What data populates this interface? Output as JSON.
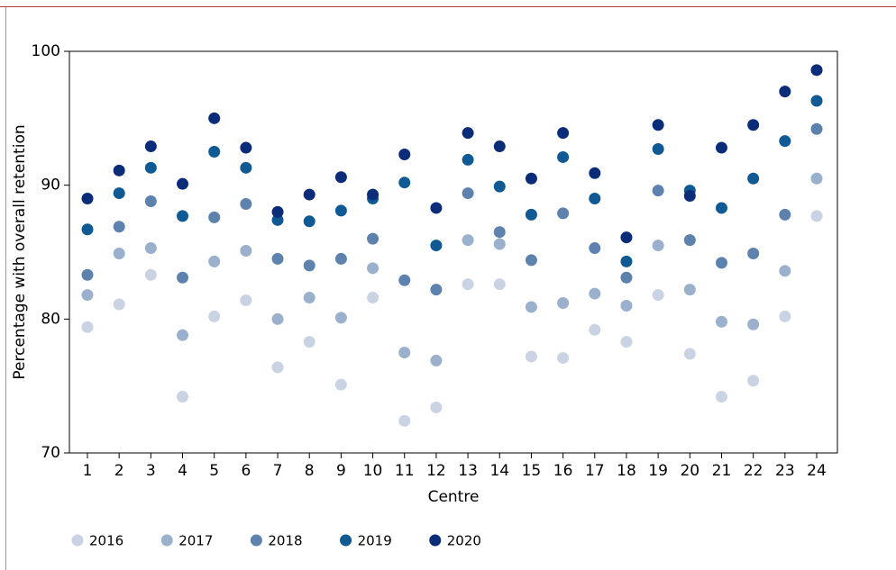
{
  "chart_data": {
    "type": "scatter",
    "x_label": "Centre",
    "y_label": "Percentage with overall retention",
    "categories": [
      "1",
      "2",
      "3",
      "4",
      "5",
      "6",
      "7",
      "8",
      "9",
      "10",
      "11",
      "12",
      "13",
      "14",
      "15",
      "16",
      "17",
      "18",
      "19",
      "20",
      "21",
      "22",
      "23",
      "24"
    ],
    "ylim": [
      70,
      100
    ],
    "yticks": [
      70,
      80,
      90,
      100
    ],
    "legend": "bottom-left",
    "series": [
      {
        "name": "2016",
        "color": "#c9d3e3",
        "values": [
          79.4,
          81.1,
          83.3,
          74.2,
          80.2,
          81.4,
          76.4,
          78.3,
          75.1,
          81.6,
          72.4,
          73.4,
          82.6,
          82.6,
          77.2,
          77.1,
          79.2,
          78.3,
          81.8,
          77.4,
          74.2,
          75.4,
          80.2,
          87.7
        ]
      },
      {
        "name": "2017",
        "color": "#9ab0cc",
        "values": [
          81.8,
          84.9,
          85.3,
          78.8,
          84.3,
          85.1,
          80.0,
          81.6,
          80.1,
          83.8,
          77.5,
          76.9,
          85.9,
          85.6,
          80.9,
          81.2,
          81.9,
          81.0,
          85.5,
          82.2,
          79.8,
          79.6,
          83.6,
          90.5
        ]
      },
      {
        "name": "2018",
        "color": "#5e82ae",
        "values": [
          83.3,
          86.9,
          88.8,
          83.1,
          87.6,
          88.6,
          84.5,
          84.0,
          84.5,
          86.0,
          82.9,
          82.2,
          89.4,
          86.5,
          84.4,
          87.9,
          85.3,
          83.1,
          89.6,
          85.9,
          84.2,
          84.9,
          87.8,
          94.2
        ]
      },
      {
        "name": "2019",
        "color": "#0f5a94",
        "values": [
          86.7,
          89.4,
          91.3,
          87.7,
          92.5,
          91.3,
          87.4,
          87.3,
          88.1,
          89.0,
          90.2,
          85.5,
          91.9,
          89.9,
          87.8,
          92.1,
          89.0,
          84.3,
          92.7,
          89.6,
          88.3,
          90.5,
          93.3,
          96.3
        ]
      },
      {
        "name": "2020",
        "color": "#0b2c78",
        "values": [
          89.0,
          91.1,
          92.9,
          90.1,
          95.0,
          92.8,
          88.0,
          89.3,
          90.6,
          89.3,
          92.3,
          88.3,
          93.9,
          92.9,
          90.5,
          93.9,
          90.9,
          86.1,
          94.5,
          89.2,
          92.8,
          94.5,
          97.0,
          98.6
        ]
      }
    ]
  }
}
